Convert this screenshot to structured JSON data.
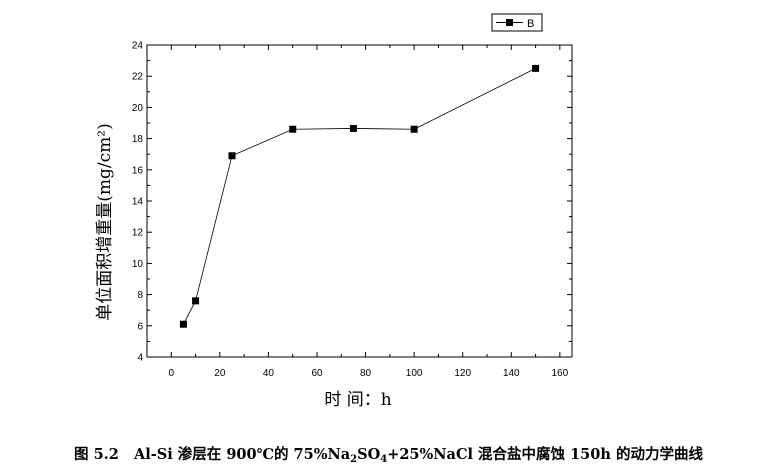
{
  "chart_data": {
    "type": "line",
    "title": "",
    "xlabel": "时 间：h",
    "ylabel": "单位面积增重量(mg/cm²)",
    "xlim": [
      -10,
      165
    ],
    "ylim": [
      4,
      24
    ],
    "xticks": [
      0,
      20,
      40,
      60,
      80,
      100,
      120,
      140,
      160
    ],
    "yticks": [
      4,
      6,
      8,
      10,
      12,
      14,
      16,
      18,
      20,
      22,
      24
    ],
    "legend_position": "top-right",
    "grid": false,
    "series": [
      {
        "name": "B",
        "color": "#000000",
        "marker": "square",
        "x": [
          5,
          10,
          25,
          50,
          75,
          100,
          150
        ],
        "y": [
          6.1,
          7.6,
          16.9,
          18.6,
          18.65,
          18.6,
          22.5
        ]
      }
    ]
  },
  "caption": {
    "figure_no": "图 5.2",
    "text_a": "Al-Si 渗层在 900℃的 75%Na",
    "sub1": "2",
    "text_b": "SO",
    "sub2": "4",
    "text_c": "+25%NaCl 混合盐中腐蚀 150h 的动力学曲线"
  }
}
